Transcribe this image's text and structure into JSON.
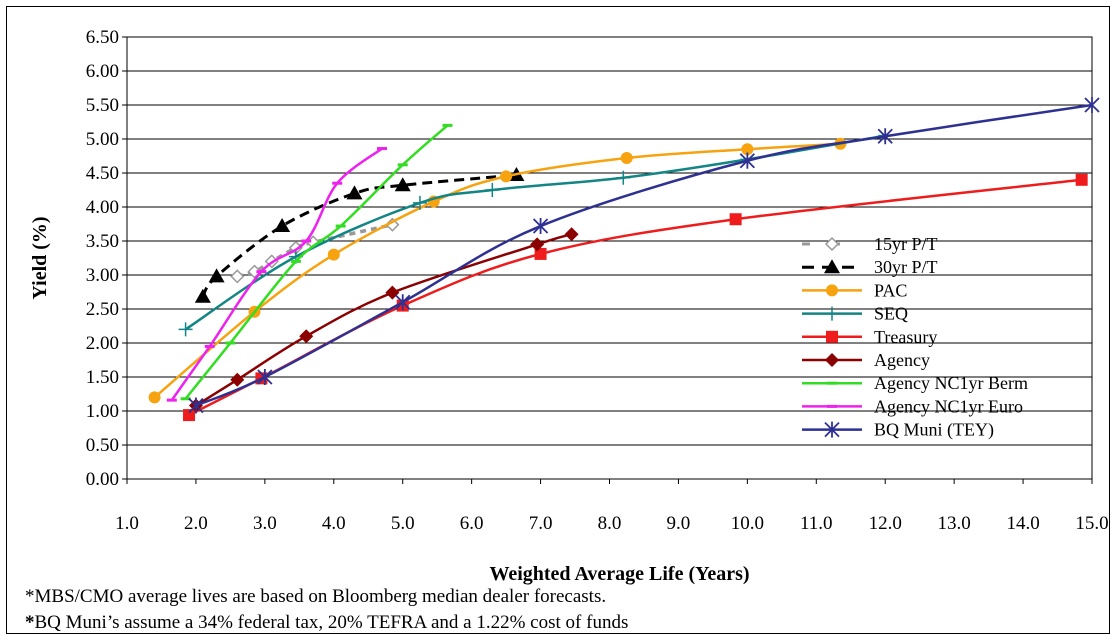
{
  "chart_data": {
    "type": "line",
    "title": "",
    "xlabel": "Weighted Average Life (Years)",
    "ylabel": "Yield (%)",
    "xlim": [
      1.0,
      15.0
    ],
    "ylim": [
      0.0,
      6.5
    ],
    "xticks": [
      "1.0",
      "2.0",
      "3.0",
      "4.0",
      "5.0",
      "6.0",
      "7.0",
      "8.0",
      "9.0",
      "10.0",
      "11.0",
      "12.0",
      "13.0",
      "14.0",
      "15.0"
    ],
    "yticks": [
      "0.00",
      "0.50",
      "1.00",
      "1.50",
      "2.00",
      "2.50",
      "3.00",
      "3.50",
      "4.00",
      "4.50",
      "5.00",
      "5.50",
      "6.00",
      "6.50"
    ],
    "grid": "horizontal",
    "legend_position": "bottom-right",
    "series": [
      {
        "name": "15yr P/T",
        "color": "#999999",
        "marker": "diamond-open",
        "dash": "dashed",
        "points": [
          [
            2.6,
            2.98
          ],
          [
            2.85,
            3.05
          ],
          [
            3.1,
            3.2
          ],
          [
            3.45,
            3.4
          ],
          [
            3.7,
            3.48
          ],
          [
            4.85,
            3.74
          ]
        ]
      },
      {
        "name": "30yr P/T",
        "color": "#000000",
        "marker": "triangle",
        "dash": "dashed",
        "points": [
          [
            2.1,
            2.68
          ],
          [
            2.3,
            2.98
          ],
          [
            3.25,
            3.72
          ],
          [
            4.3,
            4.2
          ],
          [
            5.0,
            4.32
          ],
          [
            6.65,
            4.47
          ]
        ]
      },
      {
        "name": "PAC",
        "color": "#f7a20f",
        "marker": "circle",
        "dash": "solid",
        "points": [
          [
            1.4,
            1.2
          ],
          [
            2.85,
            2.46
          ],
          [
            4.0,
            3.3
          ],
          [
            5.45,
            4.08
          ],
          [
            6.5,
            4.45
          ],
          [
            8.25,
            4.72
          ],
          [
            10.0,
            4.85
          ],
          [
            11.35,
            4.93
          ]
        ]
      },
      {
        "name": "SEQ",
        "color": "#138585",
        "marker": "plus",
        "dash": "solid",
        "points": [
          [
            1.85,
            2.2
          ],
          [
            3.45,
            3.27
          ],
          [
            5.25,
            4.06
          ],
          [
            6.3,
            4.25
          ],
          [
            8.2,
            4.43
          ],
          [
            10.0,
            4.7
          ],
          [
            12.0,
            5.05
          ]
        ]
      },
      {
        "name": "Treasury",
        "color": "#ee1c1c",
        "marker": "square",
        "dash": "solid",
        "points": [
          [
            1.9,
            0.94
          ],
          [
            2.95,
            1.48
          ],
          [
            5.0,
            2.55
          ],
          [
            7.0,
            3.31
          ],
          [
            9.83,
            3.82
          ],
          [
            14.85,
            4.4
          ]
        ]
      },
      {
        "name": "Agency",
        "color": "#8b0000",
        "marker": "diamond",
        "dash": "solid",
        "points": [
          [
            2.0,
            1.08
          ],
          [
            2.6,
            1.46
          ],
          [
            3.6,
            2.1
          ],
          [
            4.85,
            2.74
          ],
          [
            6.95,
            3.45
          ],
          [
            7.45,
            3.6
          ]
        ]
      },
      {
        "name": "Agency NC1yr Berm",
        "color": "#33dd22",
        "marker": "dash",
        "dash": "solid",
        "points": [
          [
            1.85,
            1.18
          ],
          [
            2.5,
            2.0
          ],
          [
            3.45,
            3.2
          ],
          [
            4.1,
            3.72
          ],
          [
            5.0,
            4.62
          ],
          [
            5.65,
            5.2
          ]
        ]
      },
      {
        "name": "Agency NC1yr Euro",
        "color": "#ee22ee",
        "marker": "dash",
        "dash": "solid",
        "points": [
          [
            1.65,
            1.16
          ],
          [
            2.2,
            1.95
          ],
          [
            2.95,
            3.05
          ],
          [
            3.6,
            3.5
          ],
          [
            4.05,
            4.35
          ],
          [
            4.7,
            4.86
          ]
        ]
      },
      {
        "name": "BQ Muni (TEY)",
        "color": "#2e3192",
        "marker": "asterisk",
        "dash": "solid",
        "points": [
          [
            2.0,
            1.08
          ],
          [
            3.0,
            1.5
          ],
          [
            5.0,
            2.6
          ],
          [
            7.0,
            3.72
          ],
          [
            10.0,
            4.68
          ],
          [
            12.0,
            5.04
          ],
          [
            15.0,
            5.5
          ]
        ]
      }
    ]
  },
  "notes": {
    "line1": "*MBS/CMO average lives are based on Bloomberg median dealer forecasts.",
    "line2_bold": "*",
    "line2": "BQ Muni’s assume a 34% federal tax, 20% TEFRA and a 1.22% cost of funds"
  }
}
